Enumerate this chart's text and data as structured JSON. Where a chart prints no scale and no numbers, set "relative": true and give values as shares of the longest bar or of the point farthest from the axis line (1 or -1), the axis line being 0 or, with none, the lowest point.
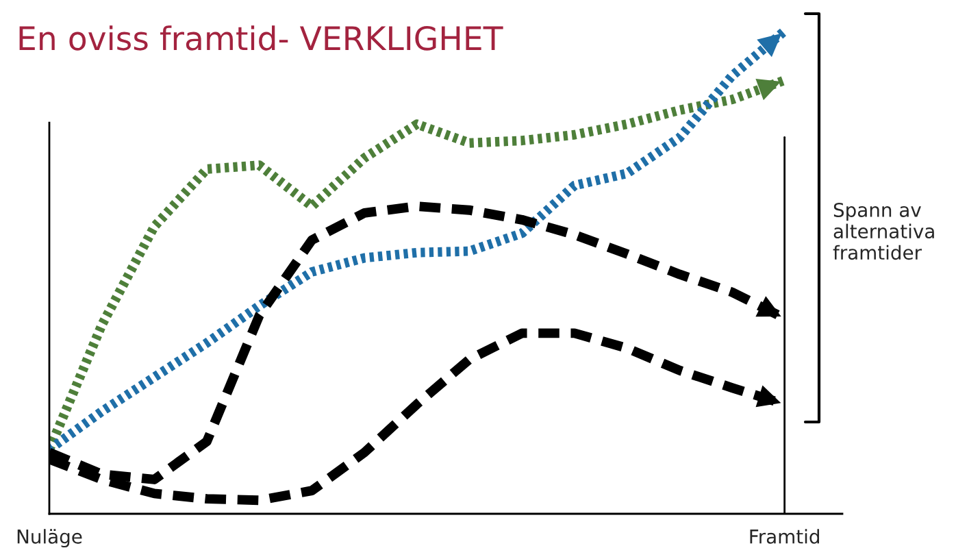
{
  "chart_data": {
    "type": "line",
    "title": "En oviss framtid- VERKLIGHET",
    "relative": true,
    "categories": [
      "Nuläge",
      null,
      null,
      null,
      null,
      null,
      null,
      null,
      null,
      null,
      null,
      null,
      null,
      null,
      "Framtid"
    ],
    "ref_lines": [
      {
        "axis": "x",
        "value": "Framtid",
        "color": "#000000"
      }
    ],
    "annotations": [
      "Spann av\nalternativa\nframtider"
    ],
    "grid": false,
    "legend": false,
    "series": [
      {
        "color": "#4e7f3a",
        "line_style": "dotted",
        "values": [
          0.133,
          0.391,
          0.595,
          0.714,
          0.722,
          0.637,
          0.737,
          0.807,
          0.768,
          0.773,
          0.785,
          0.807,
          0.836,
          0.858,
          0.898
        ]
      },
      {
        "color": "#1f6fa8",
        "line_style": "dotted",
        "values": [
          0.133,
          0.212,
          0.283,
          0.354,
          0.431,
          0.501,
          0.53,
          0.541,
          0.544,
          0.581,
          0.68,
          0.705,
          0.779,
          0.907,
          1.0
        ]
      },
      {
        "color": "#000000",
        "line_style": "dashed",
        "values": [
          0.127,
          0.082,
          0.071,
          0.15,
          0.411,
          0.567,
          0.623,
          0.637,
          0.629,
          0.609,
          0.578,
          0.538,
          0.496,
          0.459,
          0.405
        ]
      },
      {
        "color": "#000000",
        "line_style": "dashed",
        "values": [
          0.113,
          0.071,
          0.042,
          0.031,
          0.028,
          0.048,
          0.127,
          0.227,
          0.32,
          0.374,
          0.374,
          0.343,
          0.297,
          0.261,
          0.227
        ]
      }
    ]
  }
}
